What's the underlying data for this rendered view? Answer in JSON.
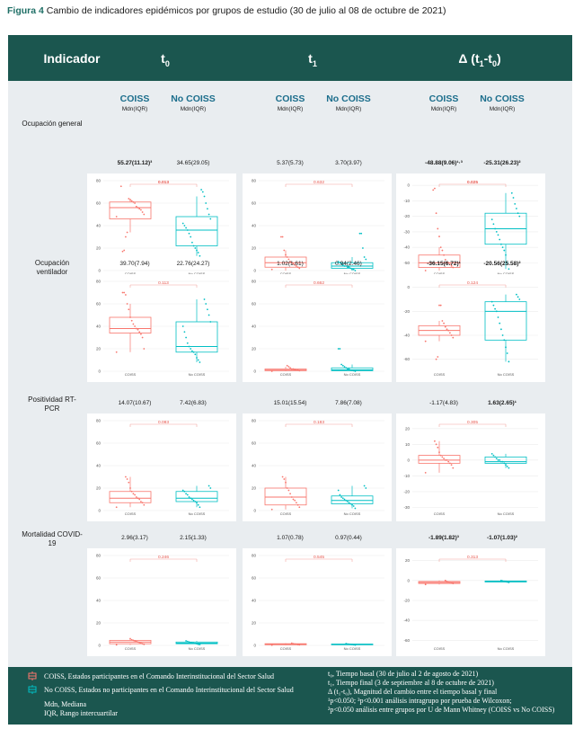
{
  "caption": {
    "label": "Figura 4",
    "text": " Cambio de indicadores epidémicos por grupos de estudio (30 de julio al 08 de octubre de 2021)"
  },
  "header": {
    "indicador": "Indicador",
    "t0": "t",
    "t0_sub": "0",
    "t1": "t",
    "t1_sub": "1",
    "delta_pre": "Δ (t",
    "delta_s1": "1",
    "delta_mid": "-t",
    "delta_s0": "0",
    "delta_post": ")"
  },
  "groups": {
    "coiss": "COISS",
    "nocoiss": "No COISS",
    "stat": "Mdn(IQR)"
  },
  "colors": {
    "coiss": "#f8766d",
    "nocoiss": "#00bfc4",
    "header_bg": "#1b564f",
    "frame_bg": "#e9edf0",
    "caption_accent": "#1f6f66"
  },
  "rows": [
    {
      "label": "Ocupación general",
      "values": {
        "t0": {
          "coiss": "55.27(11.12)³",
          "nocoiss": "34.65(29.05)",
          "bold_coiss": true,
          "bold_nocoiss": false
        },
        "t1": {
          "coiss": "5.37(5.73)",
          "nocoiss": "3.70(3.97)",
          "bold_coiss": false,
          "bold_nocoiss": false
        },
        "delta": {
          "coiss": "-48.88(9.06)¹·³",
          "nocoiss": "-25.31(26.23)²",
          "bold_coiss": true,
          "bold_nocoiss": true
        }
      },
      "plots": {
        "t0": {
          "yticks": [
            0,
            20,
            40,
            60,
            80
          ],
          "ylim": [
            0,
            80
          ],
          "p": "0.013",
          "p_bold": true,
          "coiss": {
            "q1": 46,
            "med": 56,
            "q3": 61,
            "wlo": 34,
            "whi": 64,
            "points": [
              48,
              50,
              52,
              54,
              55,
              56,
              57,
              60,
              61,
              62,
              63,
              64,
              34,
              30,
              18,
              17,
              75
            ]
          },
          "nocoiss": {
            "q1": 22,
            "med": 36,
            "q3": 48,
            "wlo": 13,
            "whi": 66,
            "points": [
              13,
              16,
              18,
              20,
              22,
              25,
              30,
              33,
              36,
              38,
              40,
              42,
              46,
              50,
              55,
              60,
              66,
              70,
              72
            ]
          }
        },
        "t1": {
          "yticks": [
            0,
            20,
            40,
            60,
            80
          ],
          "ylim": [
            0,
            80
          ],
          "p": "0.632",
          "p_bold": false,
          "coiss": {
            "q1": 3,
            "med": 7,
            "q3": 12,
            "wlo": 0,
            "whi": 18,
            "points": [
              1,
              2,
              3,
              4,
              5,
              6,
              7,
              8,
              10,
              12,
              14,
              18,
              30,
              30
            ]
          },
          "nocoiss": {
            "q1": 2,
            "med": 4,
            "q3": 7,
            "wlo": 0,
            "whi": 12,
            "points": [
              0,
              1,
              1,
              2,
              3,
              3,
              4,
              4,
              5,
              6,
              7,
              8,
              10,
              12,
              20,
              33,
              33
            ]
          }
        },
        "delta": {
          "yticks": [
            0,
            -10,
            -20,
            -30,
            -40,
            -50
          ],
          "ylim": [
            -55,
            3
          ],
          "p": "0.025",
          "p_bold": true,
          "coiss": {
            "q1": -53,
            "med": -50,
            "q3": -45,
            "wlo": -55,
            "whi": -40,
            "points": [
              -55,
              -53,
              -52,
              -51,
              -50,
              -50,
              -48,
              -45,
              -42,
              -40,
              -33,
              -28,
              -18,
              -2,
              -3
            ]
          },
          "nocoiss": {
            "q1": -38,
            "med": -28,
            "q3": -18,
            "wlo": -54,
            "whi": -5,
            "points": [
              -54,
              -50,
              -45,
              -42,
              -40,
              -38,
              -35,
              -32,
              -30,
              -28,
              -25,
              -22,
              -20,
              -18,
              -15,
              -12,
              -8,
              -5
            ]
          }
        }
      }
    },
    {
      "label": "Ocupación ventilador",
      "values": {
        "t0": {
          "coiss": "39.70(7.94)",
          "nocoiss": "22.76(24.27)",
          "bold_coiss": false,
          "bold_nocoiss": false
        },
        "t1": {
          "coiss": "1.02(1.61)",
          "nocoiss": "0.94(2.46)",
          "bold_coiss": false,
          "bold_nocoiss": false
        },
        "delta": {
          "coiss": "-36.15(6.72)¹",
          "nocoiss": "-20.56(25.58)²",
          "bold_coiss": true,
          "bold_nocoiss": true
        }
      },
      "plots": {
        "t0": {
          "yticks": [
            0,
            20,
            40,
            60,
            80
          ],
          "ylim": [
            0,
            80
          ],
          "p": "0.113",
          "p_bold": false,
          "coiss": {
            "q1": 34,
            "med": 38,
            "q3": 48,
            "wlo": 17,
            "whi": 60,
            "points": [
              17,
              20,
              30,
              33,
              35,
              37,
              38,
              40,
              42,
              45,
              48,
              55,
              60,
              68,
              70,
              70
            ]
          },
          "nocoiss": {
            "q1": 17,
            "med": 22,
            "q3": 44,
            "wlo": 8,
            "whi": 64,
            "points": [
              8,
              10,
              12,
              15,
              17,
              18,
              20,
              22,
              25,
              30,
              35,
              40,
              44,
              50,
              55,
              60,
              64
            ]
          }
        },
        "t1": {
          "yticks": [
            0,
            20,
            40,
            60,
            80
          ],
          "ylim": [
            0,
            80
          ],
          "p": "0.662",
          "p_bold": false,
          "coiss": {
            "q1": 0.5,
            "med": 1,
            "q3": 2,
            "wlo": 0,
            "whi": 4,
            "points": [
              0,
              0.5,
              1,
              1,
              1.5,
              2,
              2,
              3,
              4,
              5
            ]
          },
          "nocoiss": {
            "q1": 0.5,
            "med": 1.2,
            "q3": 3,
            "wlo": 0,
            "whi": 6,
            "points": [
              0,
              0.5,
              1,
              1,
              2,
              2,
              3,
              4,
              5,
              6,
              20,
              20
            ]
          }
        },
        "delta": {
          "yticks": [
            0,
            -20,
            -40,
            -60
          ],
          "ylim": [
            -70,
            5
          ],
          "p": "0.124",
          "p_bold": false,
          "coiss": {
            "q1": -40,
            "med": -36,
            "q3": -32,
            "wlo": -45,
            "whi": -28,
            "points": [
              -45,
              -42,
              -40,
              -38,
              -36,
              -35,
              -33,
              -30,
              -28,
              -15,
              -15,
              -58,
              -60
            ]
          },
          "nocoiss": {
            "q1": -44,
            "med": -20,
            "q3": -12,
            "wlo": -62,
            "whi": -6,
            "points": [
              -62,
              -55,
              -50,
              -44,
              -40,
              -35,
              -30,
              -25,
              -20,
              -18,
              -15,
              -12,
              -10,
              -8,
              -6
            ]
          }
        }
      }
    },
    {
      "label": "Positividad RT-PCR",
      "values": {
        "t0": {
          "coiss": "14.07(10.67)",
          "nocoiss": "7.42(6.83)",
          "bold_coiss": false,
          "bold_nocoiss": false
        },
        "t1": {
          "coiss": "15.01(15.54)",
          "nocoiss": "7.86(7.08)",
          "bold_coiss": false,
          "bold_nocoiss": false
        },
        "delta": {
          "coiss": "-1.17(4.83)",
          "nocoiss": "1.63(2.65)¹",
          "bold_coiss": false,
          "bold_nocoiss": true
        }
      },
      "plots": {
        "t0": {
          "yticks": [
            0,
            20,
            40,
            60,
            80
          ],
          "ylim": [
            0,
            80
          ],
          "p": "0.083",
          "p_bold": false,
          "coiss": {
            "q1": 7,
            "med": 11,
            "q3": 17,
            "wlo": 3,
            "whi": 30,
            "points": [
              3,
              5,
              7,
              8,
              10,
              11,
              12,
              14,
              15,
              17,
              20,
              25,
              28,
              30
            ]
          },
          "nocoiss": {
            "q1": 8,
            "med": 11,
            "q3": 17,
            "wlo": 3,
            "whi": 22,
            "points": [
              3,
              5,
              7,
              8,
              9,
              10,
              11,
              12,
              14,
              15,
              17,
              18,
              20,
              22
            ]
          }
        },
        "t1": {
          "yticks": [
            0,
            20,
            40,
            60,
            80
          ],
          "ylim": [
            0,
            80
          ],
          "p": "0.183",
          "p_bold": false,
          "coiss": {
            "q1": 5,
            "med": 12,
            "q3": 20,
            "wlo": 1,
            "whi": 30,
            "points": [
              1,
              3,
              5,
              7,
              9,
              10,
              12,
              15,
              18,
              20,
              25,
              28,
              30
            ]
          },
          "nocoiss": {
            "q1": 6,
            "med": 9,
            "q3": 13,
            "wlo": 2,
            "whi": 22,
            "points": [
              2,
              4,
              5,
              6,
              7,
              8,
              9,
              10,
              11,
              12,
              14,
              18,
              20,
              22
            ]
          }
        },
        "delta": {
          "yticks": [
            20,
            10,
            0,
            -10,
            -20,
            -30
          ],
          "ylim": [
            -32,
            25
          ],
          "p": "0.305",
          "p_bold": false,
          "coiss": {
            "q1": -2,
            "med": 0,
            "q3": 3,
            "wlo": -8,
            "whi": 12,
            "points": [
              -8,
              -5,
              -3,
              -2,
              -1,
              0,
              0,
              1,
              2,
              3,
              5,
              8,
              10,
              12
            ]
          },
          "nocoiss": {
            "q1": -2,
            "med": -1,
            "q3": 2,
            "wlo": -5,
            "whi": 4,
            "points": [
              -5,
              -4,
              -3,
              -2,
              -1,
              -1,
              0,
              0,
              1,
              2,
              3,
              4
            ]
          }
        }
      }
    },
    {
      "label": "Mortalidad COVID-19",
      "values": {
        "t0": {
          "coiss": "2.96(3.17)",
          "nocoiss": "2.15(1.33)",
          "bold_coiss": false,
          "bold_nocoiss": false
        },
        "t1": {
          "coiss": "1.07(0.78)",
          "nocoiss": "0.97(0.44)",
          "bold_coiss": false,
          "bold_nocoiss": false
        },
        "delta": {
          "coiss": "-1.89(1.82)³",
          "nocoiss": "-1.07(1.03)²",
          "bold_coiss": true,
          "bold_nocoiss": true
        }
      },
      "plots": {
        "t0": {
          "yticks": [
            0,
            20,
            40,
            60,
            80
          ],
          "ylim": [
            0,
            80
          ],
          "p": "0.246",
          "p_bold": false,
          "coiss": {
            "q1": 1.5,
            "med": 3,
            "q3": 4.5,
            "wlo": 0.5,
            "whi": 6,
            "points": [
              0.5,
              1,
              1.5,
              2,
              2.5,
              3,
              3.5,
              4,
              4.5,
              5,
              6
            ]
          },
          "nocoiss": {
            "q1": 1.5,
            "med": 2,
            "q3": 3,
            "wlo": 0.8,
            "whi": 4,
            "points": [
              0.8,
              1,
              1.5,
              1.8,
              2,
              2.2,
              2.5,
              3,
              3.5,
              4
            ]
          }
        },
        "t1": {
          "yticks": [
            0,
            20,
            40,
            60,
            80
          ],
          "ylim": [
            0,
            80
          ],
          "p": "0.545",
          "p_bold": false,
          "coiss": {
            "q1": 0.6,
            "med": 1,
            "q3": 1.5,
            "wlo": 0.2,
            "whi": 2,
            "points": [
              0.2,
              0.5,
              0.7,
              1,
              1.2,
              1.5,
              2
            ]
          },
          "nocoiss": {
            "q1": 0.7,
            "med": 1,
            "q3": 1.2,
            "wlo": 0.3,
            "whi": 1.6,
            "points": [
              0.3,
              0.6,
              0.8,
              1,
              1.1,
              1.3,
              1.6
            ]
          }
        },
        "delta": {
          "yticks": [
            20,
            0,
            -20,
            -40,
            -60
          ],
          "ylim": [
            -65,
            25
          ],
          "p": "0.313",
          "p_bold": false,
          "coiss": {
            "q1": -3,
            "med": -2,
            "q3": -1,
            "wlo": -4,
            "whi": 0,
            "points": [
              -4,
              -3,
              -2.5,
              -2,
              -1.5,
              -1,
              0
            ]
          },
          "nocoiss": {
            "q1": -1.5,
            "med": -1,
            "q3": -0.5,
            "wlo": -2,
            "whi": 0,
            "points": [
              -2,
              -1.5,
              -1,
              -0.8,
              -0.5,
              0
            ]
          }
        }
      }
    }
  ],
  "legend": {
    "coiss": "COISS, Estados participantes en el Comando Interinstitucional del Sector Salud",
    "nocoiss": "No COISS, Estados no participantes en el Comando Interinstitucional del Sector Salud",
    "mdn": "Mdn, Mediana",
    "iqr": "IQR, Rango intercuartilar",
    "t0_def": "t₀, Tiempo basal (30 de julio al 2 de agosto de 2021)",
    "t1_def": "t₁, Tiempo final (3 de septiembre al 8 de octubre de 2021)",
    "delta_def": "Δ (t₁-t₀), Magnitud del cambio entre el tiempo basal y final",
    "note1": "¹p<0.050; ³p<0.001 análisis intragrupo por prueba de Wilcoxon;",
    "note2": "²p<0.050 análisis entre grupos por U de Mann Whitney (COISS vs No COISS)"
  },
  "xcats": [
    "COISS",
    "No COISS"
  ]
}
